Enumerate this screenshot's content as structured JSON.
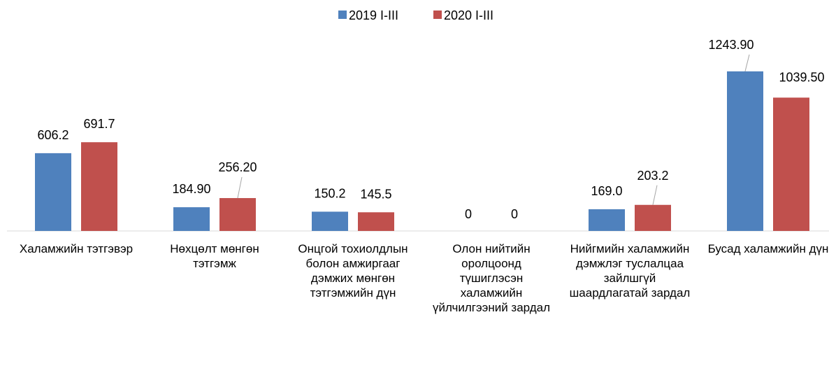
{
  "chart_data": {
    "type": "bar",
    "categories": [
      "Халамжийн тэтгэвэр",
      "Нөхцөлт мөнгөн тэтгэмж",
      "Онцгой тохиолдлын болон амжиргааг дэмжих мөнгөн тэтгэмжийн дүн",
      "Олон нийтийн оролцоонд түшиглэсэн халамжийн үйлчилгээний зардал",
      "Нийгмийн халамжийн дэмжлэг туслалцаа зайлшгүй шаардлагатай зардал",
      "Бусад халамжийн дүн"
    ],
    "series": [
      {
        "name": "2019 I-III",
        "color": "#4f81bd",
        "values": [
          606.2,
          184.9,
          150.2,
          0,
          169.0,
          1243.9
        ],
        "value_labels": [
          "606.2",
          "184.90",
          "150.2",
          "0",
          "169.0",
          "1243.90"
        ]
      },
      {
        "name": "2020 I-III",
        "color": "#c0504d",
        "values": [
          691.7,
          256.2,
          145.5,
          0,
          203.2,
          1039.5
        ],
        "value_labels": [
          "691.7",
          "256.20",
          "145.5",
          "0",
          "203.2",
          "1039.50"
        ]
      }
    ],
    "legend": "top"
  }
}
